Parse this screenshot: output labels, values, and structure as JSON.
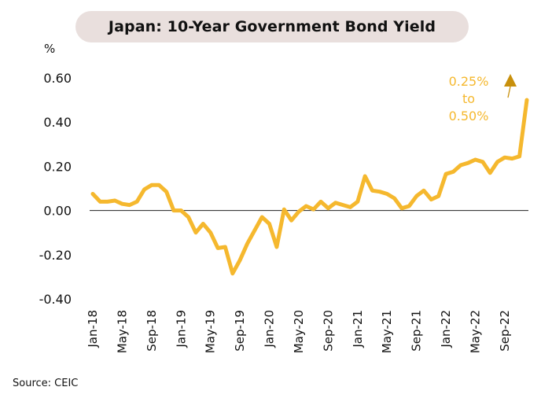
{
  "chart_data": {
    "type": "line",
    "title": "Japan: 10-Year Government Bond Yield",
    "ylabel": "%",
    "xlabel": "",
    "ylim": [
      -0.4,
      0.6
    ],
    "yticks": [
      "0.60",
      "0.40",
      "0.20",
      "0.00",
      "-0.20",
      "-0.40"
    ],
    "ytick_values": [
      0.6,
      0.4,
      0.2,
      0.0,
      -0.2,
      -0.4
    ],
    "xtick_labels": [
      "Jan-18",
      "May-18",
      "Sep-18",
      "Jan-19",
      "May-19",
      "Sep-19",
      "Jan-20",
      "May-20",
      "Sep-20",
      "Jan-21",
      "May-21",
      "Sep-21",
      "Jan-22",
      "May-22",
      "Sep-22"
    ],
    "xtick_index": [
      0,
      4,
      8,
      12,
      16,
      20,
      24,
      28,
      32,
      36,
      40,
      44,
      48,
      52,
      56
    ],
    "series": [
      {
        "color": "#f5b82e",
        "x": [
          "Jan-18",
          "Feb-18",
          "Mar-18",
          "Apr-18",
          "May-18",
          "Jun-18",
          "Jul-18",
          "Aug-18",
          "Sep-18",
          "Oct-18",
          "Nov-18",
          "Dec-18",
          "Jan-19",
          "Feb-19",
          "Mar-19",
          "Apr-19",
          "May-19",
          "Jun-19",
          "Jul-19",
          "Aug-19",
          "Sep-19",
          "Oct-19",
          "Nov-19",
          "Dec-19",
          "Jan-20",
          "Feb-20",
          "Mar-20",
          "Apr-20",
          "May-20",
          "Jun-20",
          "Jul-20",
          "Aug-20",
          "Sep-20",
          "Oct-20",
          "Nov-20",
          "Dec-20",
          "Jan-21",
          "Feb-21",
          "Mar-21",
          "Apr-21",
          "May-21",
          "Jun-21",
          "Jul-21",
          "Aug-21",
          "Sep-21",
          "Oct-21",
          "Nov-21",
          "Dec-21",
          "Jan-22",
          "Feb-22",
          "Mar-22",
          "Apr-22",
          "May-22",
          "Jun-22",
          "Jul-22",
          "Aug-22",
          "Sep-22",
          "Oct-22",
          "Nov-22",
          "Dec-22"
        ],
        "values": [
          0.075,
          0.04,
          0.04,
          0.045,
          0.03,
          0.025,
          0.04,
          0.095,
          0.115,
          0.115,
          0.085,
          0.0,
          0.0,
          -0.03,
          -0.1,
          -0.06,
          -0.1,
          -0.17,
          -0.165,
          -0.285,
          -0.225,
          -0.15,
          -0.09,
          -0.03,
          -0.06,
          -0.165,
          0.005,
          -0.045,
          -0.005,
          0.02,
          0.005,
          0.04,
          0.01,
          0.035,
          0.025,
          0.015,
          0.04,
          0.155,
          0.09,
          0.085,
          0.075,
          0.055,
          0.01,
          0.02,
          0.065,
          0.09,
          0.05,
          0.065,
          0.165,
          0.175,
          0.205,
          0.215,
          0.23,
          0.22,
          0.17,
          0.22,
          0.24,
          0.235,
          0.245,
          0.5
        ]
      }
    ],
    "annotation": {
      "text": [
        "0.25%",
        "to",
        "0.50%"
      ],
      "color": "#f5b82e",
      "arrow_color": "#c8900c"
    },
    "grid": false,
    "legend": "none"
  },
  "source": "Source: CEIC"
}
